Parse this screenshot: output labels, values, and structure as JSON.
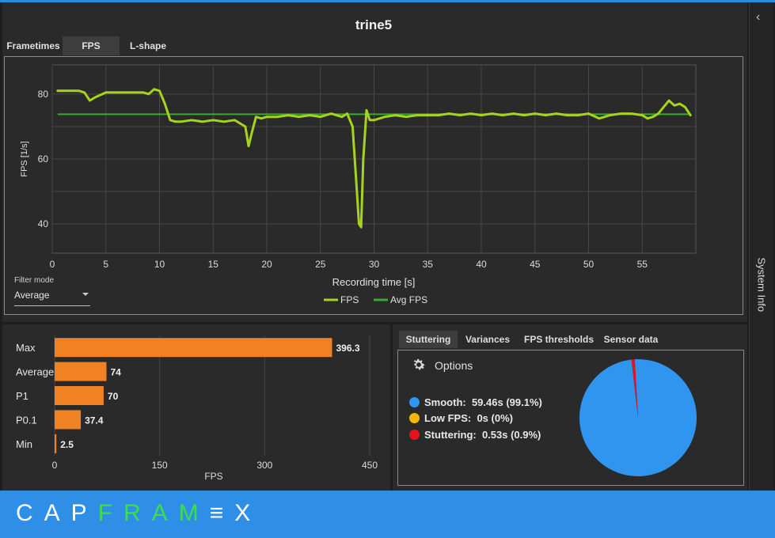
{
  "window": {
    "title": "trine5"
  },
  "tabs": [
    {
      "label": "Frametimes",
      "active": false
    },
    {
      "label": "FPS",
      "active": true
    },
    {
      "label": "L-shape",
      "active": false
    }
  ],
  "sidebar": {
    "label": "System Info",
    "chevron_icon": "chevron-left-icon"
  },
  "filter": {
    "label": "Filter mode",
    "value": "Average"
  },
  "colors": {
    "fps_line": "#a6d41c",
    "avg_line": "#3aa832",
    "bar": "#f08223",
    "smooth": "#2f95ee",
    "low_fps": "#f5b800",
    "stuttering": "#e8111c"
  },
  "chart_data": [
    {
      "type": "line",
      "title": "",
      "xlabel": "Recording time [s]",
      "ylabel": "FPS [1/s]",
      "xlim": [
        0,
        60
      ],
      "ylim": [
        31,
        89
      ],
      "xticks": [
        0,
        5,
        10,
        15,
        20,
        25,
        30,
        35,
        40,
        45,
        50,
        55
      ],
      "yticks": [
        40,
        60,
        80
      ],
      "grid": true,
      "legend": "bottom-center",
      "series": [
        {
          "name": "FPS",
          "x": [
            0.5,
            1.5,
            2.5,
            3.0,
            3.5,
            4.0,
            5.0,
            6.0,
            7.0,
            8.0,
            8.5,
            9.0,
            9.5,
            10.0,
            10.5,
            11.0,
            11.5,
            12.0,
            13.0,
            14.0,
            15.0,
            16.0,
            17.0,
            17.5,
            18.0,
            18.3,
            18.6,
            19.0,
            19.5,
            20.0,
            21.0,
            22.0,
            23.0,
            24.0,
            25.0,
            26.0,
            27.0,
            27.5,
            28.0,
            28.3,
            28.6,
            28.8,
            29.0,
            29.3,
            29.6,
            30.0,
            31.0,
            32.0,
            33.0,
            34.0,
            35.0,
            36.0,
            37.0,
            38.0,
            39.0,
            40.0,
            41.0,
            42.0,
            43.0,
            44.0,
            45.0,
            46.0,
            47.0,
            48.0,
            49.0,
            50.0,
            51.0,
            52.0,
            53.0,
            54.0,
            55.0,
            55.5,
            56.0,
            56.5,
            57.0,
            57.5,
            58.0,
            58.5,
            59.0,
            59.5
          ],
          "y": [
            81,
            81,
            81,
            80.5,
            78,
            79,
            80.5,
            80.5,
            80.5,
            80.5,
            80.5,
            80,
            81.5,
            81,
            77,
            72,
            71.5,
            71.5,
            72,
            71.5,
            72,
            71.5,
            72,
            71,
            70,
            64,
            68,
            73,
            72.5,
            73,
            73,
            73.5,
            73,
            73.5,
            73,
            74,
            73,
            74,
            70,
            55,
            40,
            39,
            60,
            75,
            72,
            72,
            73,
            73.5,
            73,
            73.5,
            73.5,
            73.5,
            74,
            73.5,
            74,
            73.5,
            74,
            73.5,
            74,
            73.5,
            74,
            73.5,
            74,
            73.5,
            73.5,
            74,
            72.5,
            73.5,
            74,
            74,
            73.5,
            72.5,
            73,
            74,
            76,
            78,
            76.5,
            77,
            76,
            73.5
          ]
        },
        {
          "name": "Avg FPS",
          "x": [
            0.5,
            59.5
          ],
          "y": [
            73.8,
            73.8
          ]
        }
      ]
    },
    {
      "type": "bar",
      "orientation": "horizontal",
      "xlabel": "FPS",
      "xlim": [
        0,
        450
      ],
      "xticks": [
        0,
        150,
        300,
        450
      ],
      "grid": true,
      "categories": [
        "Max",
        "Average",
        "P1",
        "P0.1",
        "Min"
      ],
      "values": [
        396.3,
        74,
        70,
        37.4,
        2.5
      ],
      "value_labels": [
        "396.3",
        "74",
        "70",
        "37.4",
        "2.5"
      ]
    },
    {
      "type": "pie",
      "slices": [
        {
          "label": "Smooth",
          "value": 99.1,
          "text": "59.46s (99.1%)"
        },
        {
          "label": "Low FPS",
          "value": 0,
          "text": "0s (0%)"
        },
        {
          "label": "Stuttering",
          "value": 0.9,
          "text": "0.53s (0.9%)"
        }
      ]
    }
  ],
  "stutter_tabs": [
    {
      "label": "Stuttering",
      "active": true
    },
    {
      "label": "Variances",
      "active": false
    },
    {
      "label": "FPS thresholds",
      "active": false
    },
    {
      "label": "Sensor data",
      "active": false
    }
  ],
  "options": {
    "label": "Options",
    "icon": "gear-icon"
  },
  "stutter_legend": [
    {
      "label": "Smooth:",
      "value": "59.46s (99.1%)"
    },
    {
      "label": "Low FPS:",
      "value": "0s (0%)"
    },
    {
      "label": "Stuttering:",
      "value": "0.53s (0.9%)"
    }
  ],
  "logo": {
    "part1": "CAP",
    "part2": "FRAM",
    "part3": "≡",
    "part4": "X"
  }
}
